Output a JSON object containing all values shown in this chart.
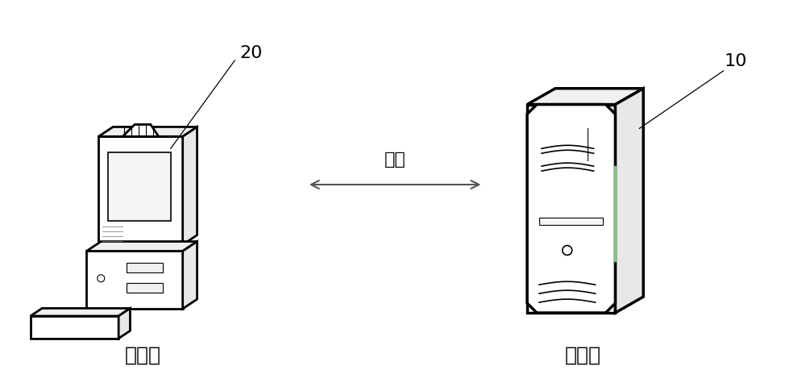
{
  "bg_color": "#ffffff",
  "line_color": "#000000",
  "thin_line_color": "#888888",
  "light_line_color": "#cccccc",
  "label_client": "客户端",
  "label_server": "服务器",
  "label_network": "网络",
  "label_20": "20",
  "label_10": "10",
  "label_fontsize": 18,
  "ref_fontsize": 16,
  "network_fontsize": 16,
  "fig_width": 10.0,
  "fig_height": 4.6
}
